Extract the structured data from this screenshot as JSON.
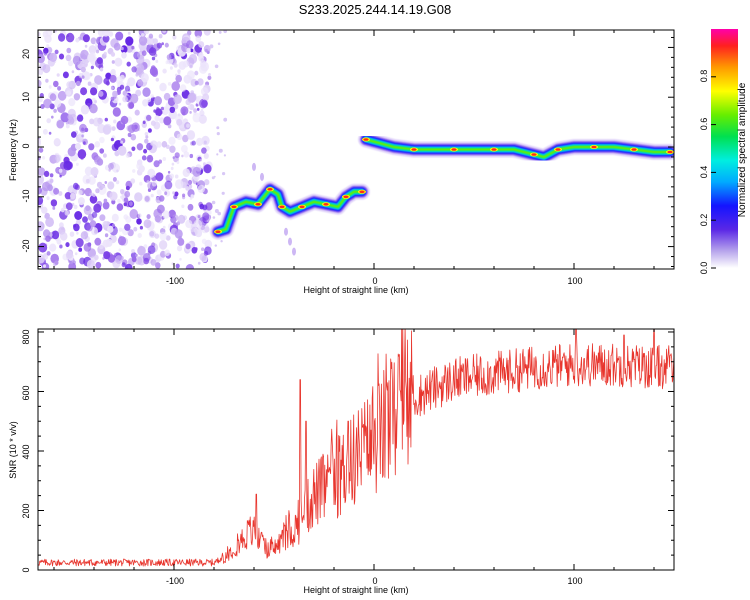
{
  "title": "S233.2025.244.14.19.G08",
  "chart_data": [
    {
      "type": "heatmap",
      "xlabel": "Height of straight line (km)",
      "ylabel": "Frequency (Hz)",
      "xlim": [
        -168,
        150
      ],
      "ylim": [
        -24.5,
        23.5
      ],
      "xticks": [
        -100,
        0,
        100
      ],
      "xtick_labels": [
        "-100",
        "0",
        "100"
      ],
      "yticks": [
        20,
        10,
        0,
        -10,
        -20
      ],
      "ytick_labels": [
        "20",
        "10",
        "0",
        "-10",
        "-20"
      ],
      "colorbar": {
        "label": "Normalized spectral amplitude",
        "range": [
          0,
          1
        ],
        "ticks": [
          0.0,
          0.2,
          0.4,
          0.6,
          0.8
        ],
        "tick_labels": [
          "0.0",
          "0.2",
          "0.4",
          "0.6",
          "0.8"
        ]
      },
      "noise_region_x": [
        -168,
        -82
      ],
      "ridge": [
        {
          "segment": 1,
          "points": [
            [
              -78,
              -17
            ],
            [
              -74,
              -16.5
            ],
            [
              -70,
              -12
            ],
            [
              -64,
              -11
            ],
            [
              -58,
              -11.5
            ],
            [
              -54,
              -9.5
            ],
            [
              -52,
              -8.5
            ],
            [
              -48,
              -9.5
            ],
            [
              -46,
              -12
            ],
            [
              -42,
              -13
            ],
            [
              -36,
              -12
            ],
            [
              -30,
              -11
            ],
            [
              -24,
              -11.5
            ],
            [
              -18,
              -12
            ],
            [
              -14,
              -10
            ],
            [
              -10,
              -9
            ],
            [
              -6,
              -9
            ]
          ]
        },
        {
          "segment": 2,
          "points": [
            [
              -4,
              1.5
            ],
            [
              10,
              0
            ],
            [
              20,
              -0.5
            ],
            [
              30,
              -0.5
            ],
            [
              40,
              -0.5
            ],
            [
              50,
              -0.5
            ],
            [
              60,
              -0.5
            ],
            [
              70,
              -0.5
            ],
            [
              80,
              -1.5
            ],
            [
              85,
              -2
            ],
            [
              92,
              -0.5
            ],
            [
              100,
              0
            ],
            [
              110,
              0
            ],
            [
              120,
              0
            ],
            [
              130,
              -0.5
            ],
            [
              140,
              -1
            ],
            [
              148,
              -1
            ]
          ]
        }
      ]
    },
    {
      "type": "line",
      "xlabel": "Height of straight line (km)",
      "ylabel": "SNR (10 * v/v)",
      "xlim": [
        -168,
        150
      ],
      "ylim": [
        0,
        810
      ],
      "xticks": [
        -100,
        0,
        100
      ],
      "xtick_labels": [
        "-100",
        "0",
        "100"
      ],
      "yticks": [
        0,
        200,
        400,
        600,
        800
      ],
      "ytick_labels": [
        "0",
        "200",
        "400",
        "600",
        "800"
      ],
      "color": "#e8362e",
      "trend": [
        [
          -168,
          25
        ],
        [
          -80,
          25
        ],
        [
          -75,
          40
        ],
        [
          -62,
          130
        ],
        [
          -52,
          60
        ],
        [
          -44,
          110
        ],
        [
          -38,
          150
        ],
        [
          -30,
          250
        ],
        [
          -20,
          300
        ],
        [
          -10,
          370
        ],
        [
          0,
          430
        ],
        [
          10,
          510
        ],
        [
          20,
          580
        ],
        [
          30,
          610
        ],
        [
          40,
          640
        ],
        [
          60,
          660
        ],
        [
          80,
          680
        ],
        [
          100,
          690
        ],
        [
          120,
          690
        ],
        [
          150,
          680
        ]
      ],
      "peaks": [
        [
          -59,
          255
        ],
        [
          -37,
          640
        ],
        [
          -34,
          500
        ],
        [
          -13,
          500
        ],
        [
          101,
          815
        ],
        [
          125,
          790
        ],
        [
          140,
          815
        ]
      ]
    }
  ]
}
